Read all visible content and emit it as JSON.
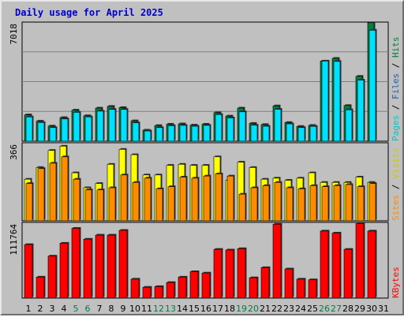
{
  "chart_data": {
    "type": "bar",
    "title": "Daily usage for April 2025",
    "categories": [
      "1",
      "2",
      "3",
      "4",
      "5",
      "6",
      "7",
      "8",
      "9",
      "10",
      "11",
      "12",
      "13",
      "14",
      "15",
      "16",
      "17",
      "18",
      "19",
      "20",
      "21",
      "22",
      "23",
      "24",
      "25",
      "26",
      "27",
      "28",
      "29",
      "30",
      "31"
    ],
    "weekend_days": [
      "5",
      "6",
      "12",
      "13",
      "19",
      "20",
      "26",
      "27"
    ],
    "panels": [
      {
        "name": "pages-files-hits",
        "max_label": "7018",
        "ymax": 7018,
        "series": [
          {
            "name": "Pages",
            "color": "#1f5fa8",
            "values": [
              1550,
              1180,
              890,
              1390,
              1830,
              1500,
              1950,
              2050,
              1980,
              1200,
              650,
              920,
              1000,
              1020,
              950,
              1000,
              1680,
              1480,
              1950,
              1050,
              980,
              2080,
              1100,
              870,
              930,
              4720,
              4880,
              2100,
              3820,
              6980,
              0
            ]
          },
          {
            "name": "Files",
            "color": "#00e0ff",
            "values": [
              1430,
              1100,
              800,
              1310,
              1700,
              1430,
              1770,
              1870,
              1870,
              1080,
              600,
              800,
              910,
              930,
              880,
              930,
              1570,
              1370,
              1730,
              940,
              880,
              1880,
              1020,
              800,
              870,
              4720,
              4700,
              1850,
              3600,
              6540,
              0
            ]
          },
          {
            "name": "Hits",
            "color": "#008040",
            "values": [
              1550,
              1180,
              890,
              1390,
              1830,
              1500,
              1950,
              2050,
              1980,
              1200,
              650,
              920,
              1000,
              1020,
              950,
              1000,
              1680,
              1480,
              1950,
              1050,
              980,
              2080,
              1100,
              870,
              930,
              4720,
              4880,
              2100,
              3820,
              6980,
              0
            ]
          }
        ],
        "legend": [
          {
            "text": "Pages",
            "color": "#00c8c8"
          },
          {
            "text": "Files",
            "color": "#1f5fa8"
          },
          {
            "text": "Hits",
            "color": "#008040"
          }
        ]
      },
      {
        "name": "visits-sites",
        "max_label": "366",
        "ymax": 366,
        "series": [
          {
            "name": "Visits",
            "color": "#ffff00",
            "values": [
              195,
              250,
              330,
              350,
              225,
              155,
              175,
              265,
              335,
              310,
              215,
              215,
              260,
              265,
              260,
              260,
              300,
              190,
              275,
              250,
              195,
              200,
              190,
              200,
              225,
              180,
              180,
              180,
              205,
              180,
              0
            ]
          },
          {
            "name": "Sites",
            "color": "#ff8c00",
            "values": [
              175,
              245,
              270,
              300,
              195,
              145,
              145,
              155,
              215,
              180,
              200,
              150,
              160,
              205,
              200,
              210,
              220,
              210,
              125,
              155,
              165,
              180,
              155,
              150,
              165,
              160,
              165,
              170,
              160,
              175,
              0
            ]
          }
        ],
        "legend": [
          {
            "text": "Sites",
            "color": "#ff8c00"
          },
          {
            "text": "Visits",
            "color": "#cccc00"
          }
        ]
      },
      {
        "name": "kbytes",
        "max_label": "111764",
        "ymax": 111764,
        "series": [
          {
            "name": "KBytes",
            "color": "#ff0000",
            "values": [
              79000,
              31000,
              62000,
              81000,
              103000,
              87000,
              93000,
              93000,
              100000,
              28000,
              16000,
              17000,
              23000,
              31000,
              39000,
              37000,
              72000,
              71000,
              73000,
              30000,
              45000,
              109000,
              43000,
              28000,
              27000,
              99000,
              96000,
              72000,
              110000,
              99000,
              0
            ]
          }
        ],
        "legend": [
          {
            "text": "KBytes",
            "color": "#ff0000"
          }
        ]
      }
    ]
  }
}
